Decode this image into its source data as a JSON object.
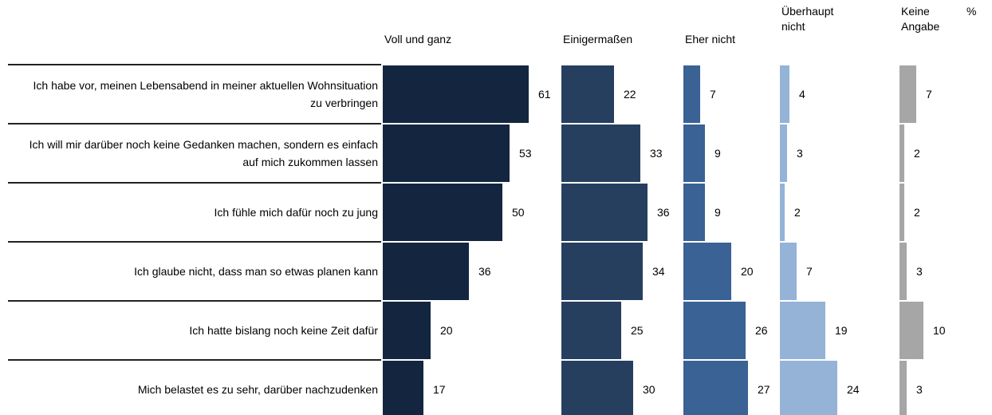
{
  "chart_data": {
    "type": "bar",
    "orientation": "horizontal",
    "unit": "%",
    "categories": [
      "Ich habe vor, meinen Lebensabend in meiner aktuellen Wohnsituation zu verbringen",
      "Ich will mir darüber noch keine Gedanken machen, sondern es einfach auf mich zukommen lassen",
      "Ich fühle mich dafür noch zu jung",
      "Ich glaube nicht, dass man so etwas planen kann",
      "Ich hatte bislang noch keine Zeit dafür",
      "Mich belastet es zu sehr, darüber nachzudenken"
    ],
    "xlim": [
      0,
      70
    ],
    "series": [
      {
        "name": "Voll und ganz",
        "color": "#14263f",
        "values": [
          61,
          53,
          50,
          36,
          20,
          17
        ]
      },
      {
        "name": "Einigermaßen",
        "color": "#263f5f",
        "values": [
          22,
          33,
          36,
          34,
          25,
          30
        ]
      },
      {
        "name": "Eher nicht",
        "color": "#3a6294",
        "values": [
          7,
          9,
          9,
          20,
          26,
          27
        ]
      },
      {
        "name": "Überhaupt nicht",
        "color": "#94b3d7",
        "values": [
          4,
          3,
          2,
          7,
          19,
          24
        ]
      },
      {
        "name": "Keine Angabe",
        "color": "#a6a6a6",
        "values": [
          7,
          2,
          2,
          3,
          10,
          3
        ]
      }
    ]
  }
}
